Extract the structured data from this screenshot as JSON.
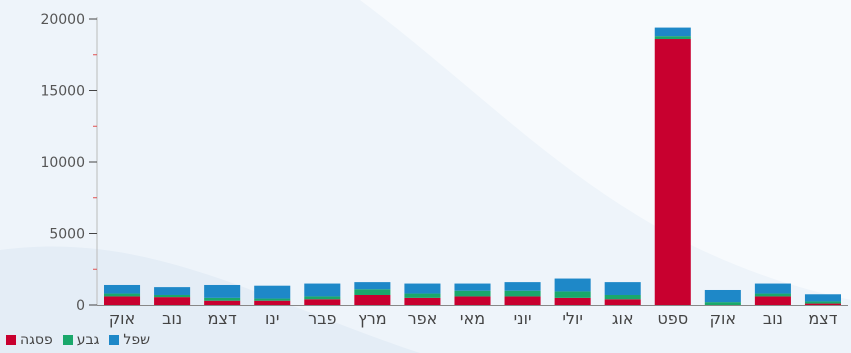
{
  "chart_data": {
    "type": "bar",
    "stacked": true,
    "categories": [
      "אוק",
      "נוב",
      "דצמ",
      "ינו",
      "פבר",
      "מרץ",
      "אפר",
      "מאי",
      "יוני",
      "יולי",
      "אוג",
      "ספט",
      "אוק",
      "נוב",
      "דצמ"
    ],
    "series": [
      {
        "name": "פסגה",
        "color": "#c8002f",
        "values": [
          600,
          550,
          300,
          300,
          400,
          700,
          500,
          600,
          600,
          500,
          400,
          18600,
          0,
          600,
          100
        ]
      },
      {
        "name": "גבע",
        "color": "#1aa86b",
        "values": [
          200,
          150,
          200,
          150,
          200,
          400,
          300,
          400,
          400,
          450,
          300,
          200,
          200,
          200,
          150
        ]
      },
      {
        "name": "שפל",
        "color": "#1e88c8",
        "values": [
          600,
          550,
          900,
          900,
          900,
          500,
          700,
          500,
          600,
          900,
          900,
          600,
          850,
          700,
          500
        ]
      }
    ],
    "yticks": [
      0,
      5000,
      10000,
      15000,
      20000
    ],
    "ylim": [
      0,
      20000
    ],
    "legend_position": "bottom-left"
  }
}
